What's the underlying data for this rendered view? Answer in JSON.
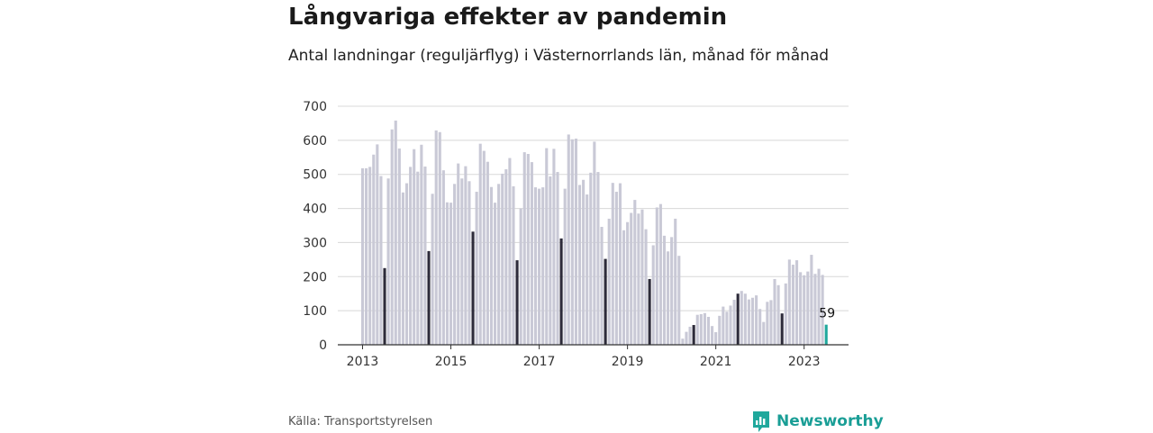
{
  "chart_data": {
    "type": "bar",
    "title": "Långvariga effekter av pandemin",
    "subtitle": "Antal landningar (reguljärflyg) i Västernorrlands län, månad för månad",
    "ylim": [
      0,
      700
    ],
    "yticks": [
      "0",
      "100",
      "200",
      "300",
      "400",
      "500",
      "600",
      "700"
    ],
    "xticks": [
      {
        "label": "2013",
        "index": 0
      },
      {
        "label": "2015",
        "index": 24
      },
      {
        "label": "2017",
        "index": 48
      },
      {
        "label": "2019",
        "index": 72
      },
      {
        "label": "2021",
        "index": 96
      },
      {
        "label": "2023",
        "index": 120
      }
    ],
    "grid": true,
    "colors": {
      "default": "#c9c9d6",
      "july": "#2d2b3a",
      "latest": "#1fa89c",
      "grid": "#d8d8d8",
      "axis": "#333333"
    },
    "values": [
      518,
      518,
      522,
      558,
      588,
      495,
      225,
      488,
      632,
      658,
      576,
      447,
      474,
      522,
      574,
      508,
      587,
      523,
      275,
      443,
      629,
      624,
      512,
      418,
      417,
      472,
      532,
      488,
      524,
      480,
      332,
      449,
      590,
      569,
      537,
      463,
      417,
      472,
      502,
      515,
      548,
      465,
      248,
      400,
      565,
      560,
      536,
      462,
      458,
      462,
      577,
      494,
      575,
      507,
      312,
      458,
      617,
      603,
      605,
      469,
      484,
      441,
      505,
      596,
      507,
      346,
      252,
      370,
      475,
      449,
      474,
      336,
      360,
      387,
      425,
      385,
      397,
      339,
      193,
      292,
      403,
      413,
      320,
      274,
      316,
      370,
      261,
      18,
      38,
      53,
      58,
      88,
      90,
      93,
      82,
      55,
      37,
      85,
      112,
      97,
      115,
      132,
      150,
      158,
      150,
      133,
      138,
      145,
      105,
      67,
      126,
      131,
      193,
      175,
      92,
      180,
      250,
      235,
      248,
      213,
      204,
      215,
      264,
      208,
      223,
      205,
      59
    ],
    "july_indices": [
      6,
      18,
      30,
      42,
      54,
      66,
      78,
      90,
      102,
      114
    ],
    "latest_label": "59"
  },
  "source": "Källa: Transportstyrelsen",
  "brand": {
    "name": "Newsworthy",
    "icon": "newsworthy-chart-icon"
  }
}
